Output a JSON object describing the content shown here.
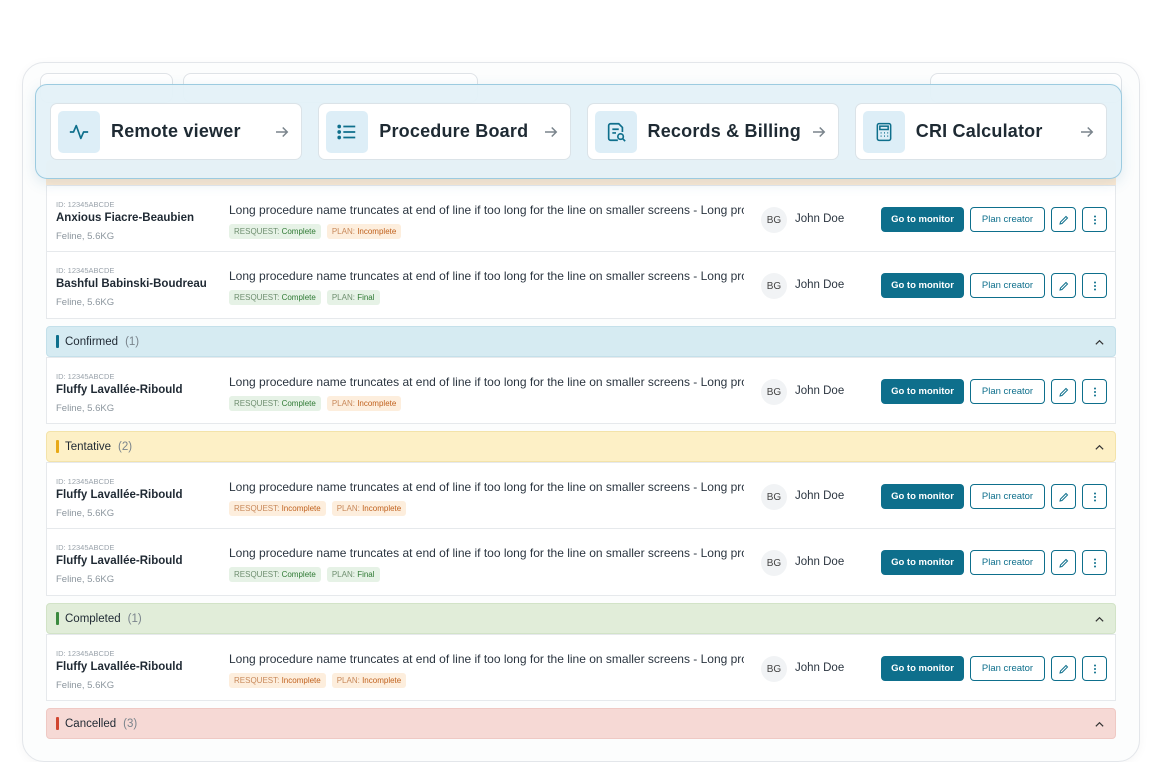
{
  "quick_nav": [
    {
      "label": "Remote viewer",
      "icon": "activity-pulse-icon"
    },
    {
      "label": "Procedure Board",
      "icon": "list-icon"
    },
    {
      "label": "Records & Billing",
      "icon": "document-search-icon"
    },
    {
      "label": "CRI Calculator",
      "icon": "calculator-icon"
    }
  ],
  "actions": {
    "monitor": "Go to monitor",
    "plan": "Plan creator"
  },
  "rows": [
    {
      "id": "ID: 12345ABCDE",
      "name": "Anxious Fiacre-Beaubien",
      "meta": "Feline, 5.6KG",
      "procedure": "Long procedure name truncates at end of line if too long for the line on smaller screens - Long pro...",
      "request_label": "RESQUEST:",
      "request": "Complete",
      "plan_label": "PLAN:",
      "plan": "Incomplete",
      "initials": "BG",
      "owner": "John Doe"
    },
    {
      "id": "ID: 12345ABCDE",
      "name": "Bashful Babinski-Boudreau",
      "meta": "Feline, 5.6KG",
      "procedure": "Long procedure name truncates at end of line if too long for the line on smaller screens - Long pro...",
      "request_label": "RESQUEST:",
      "request": "Complete",
      "plan_label": "PLAN:",
      "plan": "Final",
      "initials": "BG",
      "owner": "John Doe"
    },
    {
      "id": "ID: 12345ABCDE",
      "name": "Fluffy Lavallée-Ribould",
      "meta": "Feline, 5.6KG",
      "procedure": "Long procedure name truncates at end of line if too long for the line on smaller screens - Long pro...",
      "request_label": "RESQUEST:",
      "request": "Complete",
      "plan_label": "PLAN:",
      "plan": "Incomplete",
      "initials": "BG",
      "owner": "John Doe"
    },
    {
      "id": "ID: 12345ABCDE",
      "name": "Fluffy Lavallée-Ribould",
      "meta": "Feline, 5.6KG",
      "procedure": "Long procedure name truncates at end of line if too long for the line on smaller screens - Long pro...",
      "request_label": "RESQUEST:",
      "request": "Incomplete",
      "plan_label": "PLAN:",
      "plan": "Incomplete",
      "initials": "BG",
      "owner": "John Doe"
    },
    {
      "id": "ID: 12345ABCDE",
      "name": "Fluffy Lavallée-Ribould",
      "meta": "Feline, 5.6KG",
      "procedure": "Long procedure name truncates at end of line if too long for the line on smaller screens - Long pro...",
      "request_label": "RESQUEST:",
      "request": "Complete",
      "plan_label": "PLAN:",
      "plan": "Final",
      "initials": "BG",
      "owner": "John Doe"
    },
    {
      "id": "ID: 12345ABCDE",
      "name": "Fluffy Lavallée-Ribould",
      "meta": "Feline, 5.6KG",
      "procedure": "Long procedure name truncates at end of line if too long for the line on smaller screens - Long pro...",
      "request_label": "RESQUEST:",
      "request": "Incomplete",
      "plan_label": "PLAN:",
      "plan": "Incomplete",
      "initials": "BG",
      "owner": "John Doe"
    }
  ],
  "groups": {
    "confirmed": {
      "label": "Confirmed",
      "count": "(1)"
    },
    "tentative": {
      "label": "Tentative",
      "count": "(2)"
    },
    "completed": {
      "label": "Completed",
      "count": "(1)"
    },
    "cancelled": {
      "label": "Cancelled",
      "count": "(3)"
    }
  },
  "colors": {
    "primary": "#0e6f8c",
    "confirmed": "#0e6f8c",
    "tentative": "#e8a916",
    "completed": "#3b8a3f",
    "cancelled": "#d1452f"
  }
}
